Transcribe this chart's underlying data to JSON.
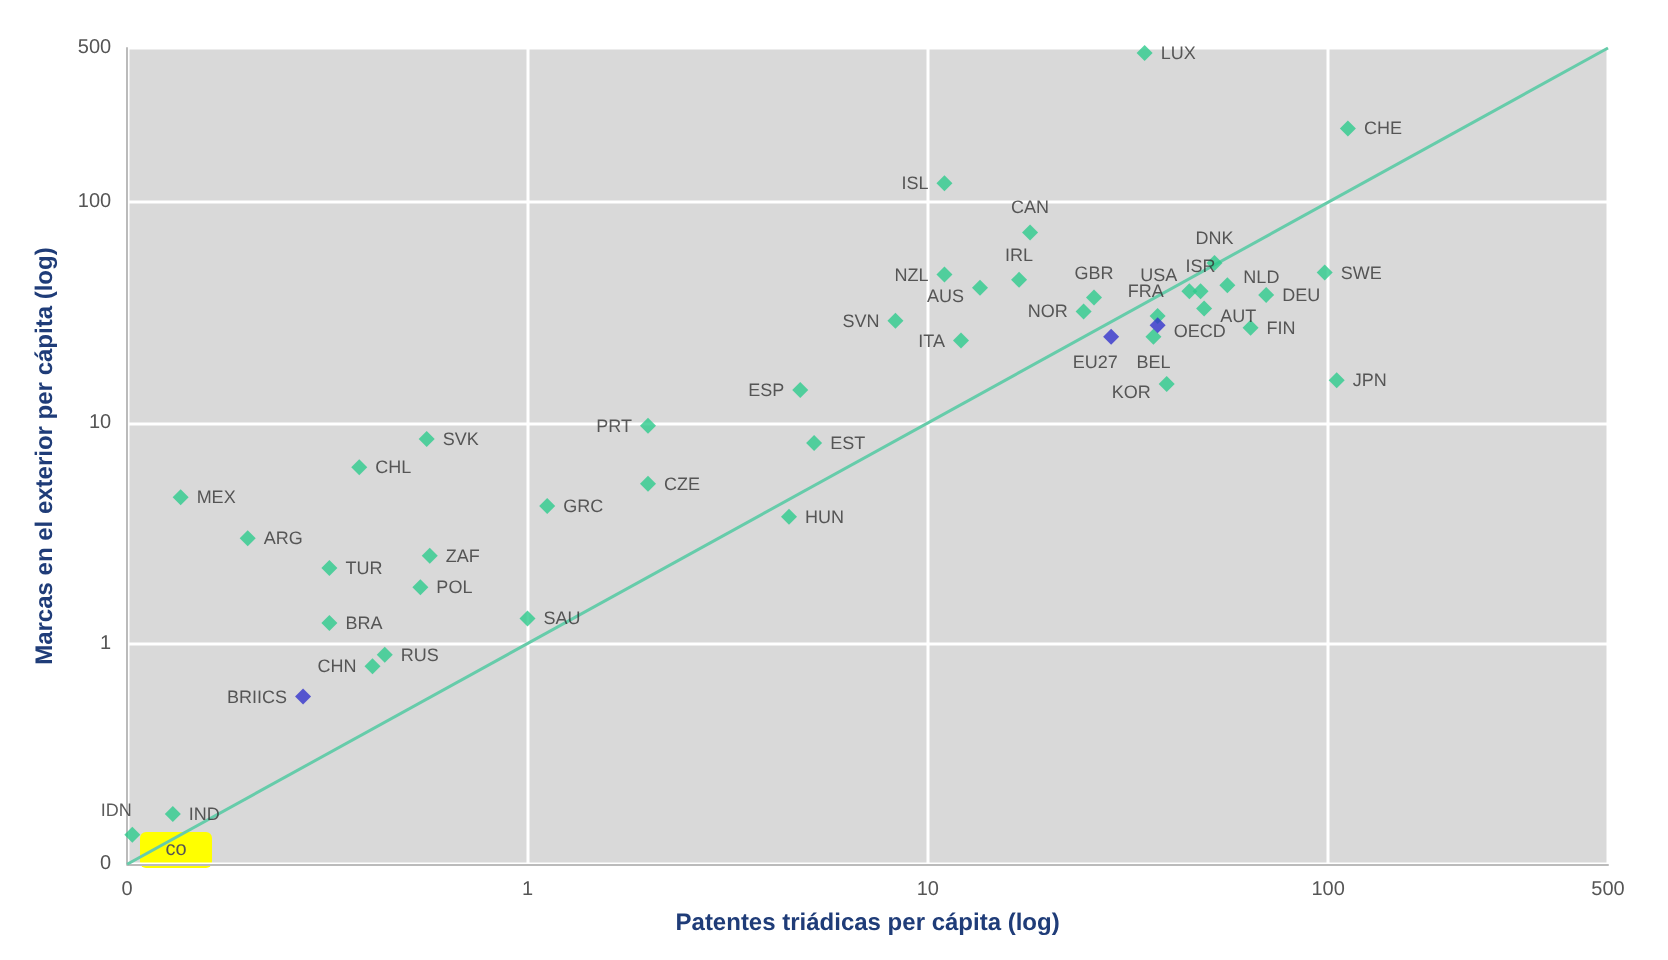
{
  "chart_data": {
    "type": "scatter",
    "xlabel": "Patentes triádicas per cápita (log)",
    "ylabel": "Marcas en el exterior per cápita (log)",
    "log": "xy",
    "grid": true,
    "marker": "diamond",
    "xlim": [
      0.1,
      500
    ],
    "ylim": [
      0.1,
      500
    ],
    "xticks": [
      {
        "value": 0.1,
        "label": "0"
      },
      1,
      10,
      100,
      500
    ],
    "yticks": [
      {
        "value": 0.1,
        "label": "0"
      },
      1,
      10,
      100,
      500
    ],
    "annotations": [
      "co"
    ],
    "series": [
      {
        "color": "#2dca8c",
        "x": [
          34.8,
          112,
          11,
          18,
          11,
          13.5,
          16.9,
          8.3,
          12.1,
          26,
          24.5,
          37.5,
          36.6,
          45,
          48,
          52,
          56,
          49,
          70,
          64,
          98,
          39.5,
          105,
          4.8,
          5.2,
          4.5,
          2.0,
          2.0,
          1.12,
          1.0,
          0.56,
          0.38,
          0.136,
          0.2,
          0.32,
          0.57,
          0.54,
          0.32,
          0.44,
          0.41,
          0.13,
          0.103
        ],
        "values": [
          475,
          216,
          122,
          73,
          47,
          41,
          44.5,
          29,
          23.6,
          37,
          32,
          30.5,
          24.6,
          39.5,
          39.5,
          53,
          42,
          33,
          38,
          27,
          48,
          15,
          15.6,
          14.1,
          8.1,
          3.76,
          9.7,
          5.3,
          4.2,
          1.3,
          8.45,
          6.3,
          4.6,
          3.0,
          2.2,
          2.5,
          1.8,
          1.24,
          0.89,
          0.79,
          0.169,
          0.136
        ],
        "value_labels": [
          "LUX",
          "CHE",
          "ISL",
          "CAN",
          "NZL",
          "AUS",
          "IRL",
          "SVN",
          "ITA",
          "GBR",
          "NOR",
          "FRA",
          "BEL",
          "USA",
          "ISR",
          "DNK",
          "NLD",
          "AUT",
          "DEU",
          "FIN",
          "SWE",
          "KOR",
          "JPN",
          "ESP",
          "EST",
          "HUN",
          "PRT",
          "CZE",
          "GRC",
          "SAU",
          "SVK",
          "CHL",
          "MEX",
          "ARG",
          "TUR",
          "ZAF",
          "POL",
          "BRA",
          "RUS",
          "CHN",
          "IND",
          "IDN"
        ]
      },
      {
        "color": "#3333cc",
        "x": [
          0.275,
          28.7,
          37.5
        ],
        "values": [
          0.575,
          24.6,
          27.7
        ],
        "value_labels": [
          "BRIICS",
          "EU27",
          "OECD"
        ]
      },
      {
        "type": "line",
        "color": "#66ccaa",
        "marker": "none",
        "x": [
          0.1,
          500
        ],
        "values": [
          0.1,
          500
        ]
      }
    ]
  }
}
